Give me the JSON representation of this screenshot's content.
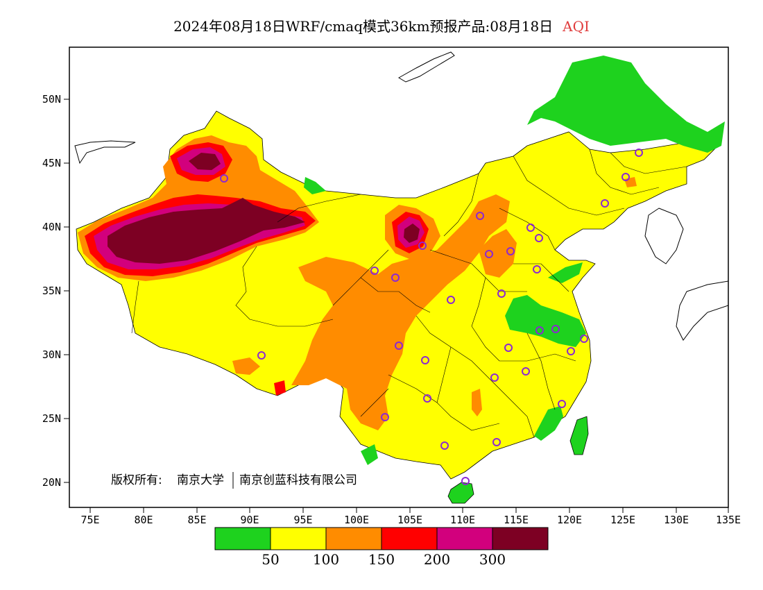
{
  "title": {
    "main": "2024年08月18日WRF/cmaq模式36km预报产品:08月18日",
    "variable": "AQI"
  },
  "axes": {
    "x_ticks": [
      "75E",
      "80E",
      "85E",
      "90E",
      "95E",
      "100E",
      "105E",
      "110E",
      "115E",
      "120E",
      "125E",
      "130E",
      "135E"
    ],
    "y_ticks": [
      "50N",
      "45N",
      "40N",
      "35N",
      "30N",
      "25N",
      "20N"
    ]
  },
  "copyright": {
    "prefix": "版权所有:",
    "org1": "南京大学",
    "org2": "南京创蓝科技有限公司"
  },
  "legend": {
    "colors": [
      "#1ed21e",
      "#ffff00",
      "#ff8c00",
      "#ff0000",
      "#d2007d",
      "#7d0023"
    ],
    "labels": [
      "50",
      "100",
      "150",
      "200",
      "300"
    ]
  },
  "city_marker_color": "#8c28d2"
}
